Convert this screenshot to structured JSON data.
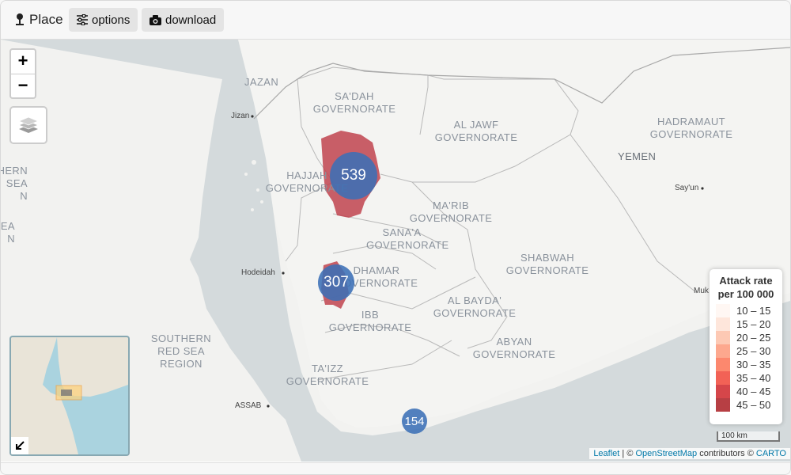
{
  "toolbar": {
    "place_label": "Place",
    "options_label": "options",
    "download_label": "download"
  },
  "map": {
    "zoom_in": "+",
    "zoom_out": "−",
    "labels": {
      "jazan": "JAZAN",
      "sadah": "SA'DAH GOVERNORATE",
      "al_jawf": "AL JAWF GOVERNORATE",
      "hadramaut": "HADRAMAUT GOVERNORATE",
      "yemen": "YEMEN",
      "hajjah": "HAJJAH GOVERNORATE",
      "marib": "MA'RIB GOVERNORATE",
      "sanaa": "SANA'A GOVERNORATE",
      "dhamar": "DHAMAR GOVERNORATE",
      "shabwah": "SHABWAH GOVERNORATE",
      "al_bayda": "AL BAYDA' GOVERNORATE",
      "ibb": "IBB GOVERNORATE",
      "abyan": "ABYAN GOVERNORATE",
      "southern_red_sea": "SOUTHERN RED SEA REGION",
      "taizz": "TA'IZZ GOVERNORATE",
      "left_edge_1": "HERN\nSEA\nN",
      "left_edge_2": "EA\nN"
    },
    "cities": {
      "jizan": "Jizan",
      "hodeidah": "Hodeidah",
      "sayun": "Say'un",
      "assab": "ASSAB",
      "mukalla": "Muk"
    },
    "clusters": [
      {
        "label": "539",
        "count": 539
      },
      {
        "label": "307",
        "count": 307
      },
      {
        "label": "154",
        "count": 154
      }
    ]
  },
  "legend": {
    "title_line1": "Attack rate",
    "title_line2": "per 100 000",
    "items": [
      {
        "range": "10 – 15",
        "color": "#fff5f0"
      },
      {
        "range": "15 – 20",
        "color": "#fee0d2"
      },
      {
        "range": "20 – 25",
        "color": "#fcbba1"
      },
      {
        "range": "25 – 30",
        "color": "#fc9272"
      },
      {
        "range": "30 – 35",
        "color": "#fb6a4a"
      },
      {
        "range": "35 – 40",
        "color": "#ef3b2c"
      },
      {
        "range": "40 – 45",
        "color": "#cb181d"
      },
      {
        "range": "45 – 50",
        "color": "#a50f15"
      }
    ]
  },
  "scale": "100 km",
  "attribution": {
    "leaflet": "Leaflet",
    "sep1": " | © ",
    "osm": "OpenStreetMap",
    "mid": " contributors © ",
    "carto": "CARTO"
  },
  "colors": {
    "sea": "#d4dadc",
    "land": "#f2f2f0",
    "choropleth": "#c0434f",
    "cluster": "#3b6fb6"
  }
}
